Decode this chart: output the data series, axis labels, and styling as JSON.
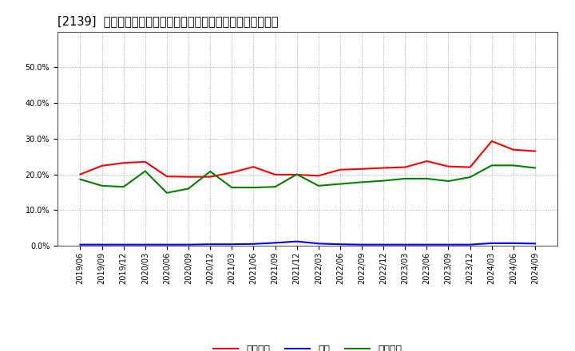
{
  "title": "[2139]  売上債権、在庫、㛋入債務の総資産に対する比率の推移",
  "x_labels": [
    "2019/06",
    "2019/09",
    "2019/12",
    "2020/03",
    "2020/06",
    "2020/09",
    "2020/12",
    "2021/03",
    "2021/06",
    "2021/09",
    "2021/12",
    "2022/03",
    "2022/06",
    "2022/09",
    "2022/12",
    "2023/03",
    "2023/06",
    "2023/09",
    "2023/12",
    "2024/03",
    "2024/06",
    "2024/09"
  ],
  "uriken": [
    0.2,
    0.224,
    0.232,
    0.235,
    0.194,
    0.193,
    0.193,
    0.205,
    0.221,
    0.199,
    0.199,
    0.196,
    0.213,
    0.215,
    0.218,
    0.22,
    0.237,
    0.222,
    0.22,
    0.293,
    0.269,
    0.265
  ],
  "zaiko": [
    0.003,
    0.003,
    0.003,
    0.003,
    0.003,
    0.003,
    0.004,
    0.004,
    0.005,
    0.008,
    0.012,
    0.006,
    0.004,
    0.003,
    0.003,
    0.003,
    0.003,
    0.003,
    0.003,
    0.007,
    0.007,
    0.006
  ],
  "kaiire": [
    0.186,
    0.168,
    0.165,
    0.209,
    0.148,
    0.16,
    0.208,
    0.163,
    0.163,
    0.165,
    0.2,
    0.168,
    0.173,
    0.178,
    0.182,
    0.188,
    0.188,
    0.181,
    0.192,
    0.225,
    0.225,
    0.218
  ],
  "color_uriken": "#ff0000",
  "color_zaiko": "#0000ff",
  "color_kaiire": "#008000",
  "label_uriken": "売上債権",
  "label_zaiko": "在庫",
  "label_kaiire": "㛋入債務",
  "ylim_min": 0.0,
  "ylim_max": 0.6,
  "yticks": [
    0.0,
    0.1,
    0.2,
    0.3,
    0.4,
    0.5
  ],
  "background_color": "#ffffff",
  "grid_color": "#999999",
  "title_fontsize": 10.5,
  "tick_fontsize": 7,
  "legend_fontsize": 9
}
